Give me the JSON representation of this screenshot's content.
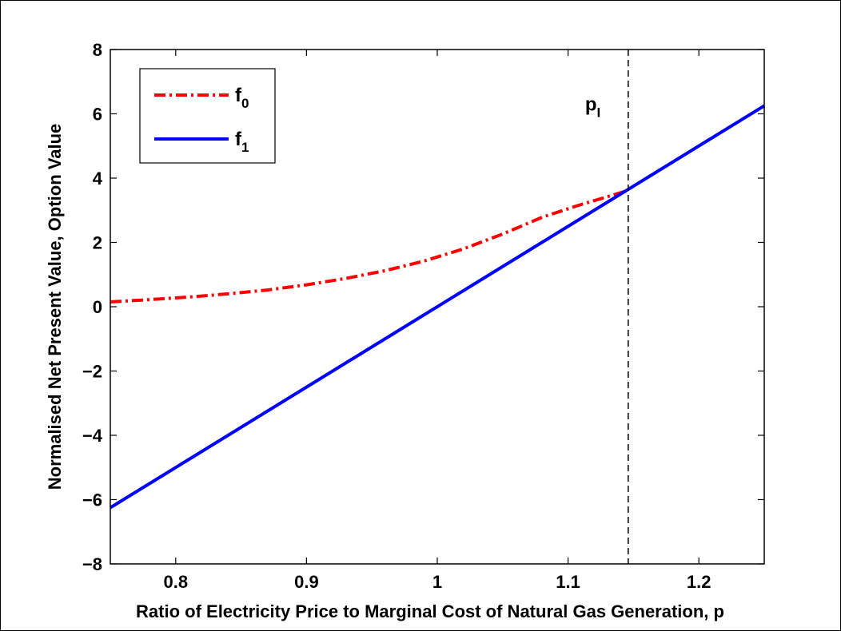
{
  "chart_data": {
    "type": "line",
    "xlabel": "Ratio of Electricity Price to Marginal Cost of Natural Gas Generation, p",
    "ylabel": "Normalised Net Present Value, Option Value",
    "xlim": [
      0.75,
      1.25
    ],
    "ylim": [
      -8,
      8
    ],
    "xticks": [
      0.8,
      0.9,
      1,
      1.1,
      1.2
    ],
    "xtick_labels": [
      "0.8",
      "0.9",
      "1",
      "1.1",
      "1.2"
    ],
    "yticks": [
      -8,
      -6,
      -4,
      -2,
      0,
      2,
      4,
      6,
      8
    ],
    "ytick_labels": [
      "−8",
      "−6",
      "−4",
      "−2",
      "0",
      "2",
      "4",
      "6",
      "8"
    ],
    "grid": false,
    "legend_position": "top-left",
    "series": [
      {
        "name": "f",
        "subscript": "0",
        "color": "#ff0000",
        "style": "dash-dot",
        "x": [
          0.75,
          0.78,
          0.81,
          0.84,
          0.87,
          0.9,
          0.93,
          0.96,
          0.99,
          1.02,
          1.05,
          1.08,
          1.11,
          1.13,
          1.146
        ],
        "y": [
          0.15,
          0.22,
          0.3,
          0.4,
          0.52,
          0.68,
          0.88,
          1.12,
          1.42,
          1.8,
          2.26,
          2.78,
          3.18,
          3.42,
          3.62
        ]
      },
      {
        "name": "f",
        "subscript": "1",
        "color": "#0000ff",
        "style": "solid",
        "x": [
          0.75,
          1.25
        ],
        "y": [
          -6.25,
          6.25
        ]
      }
    ],
    "annotations": [
      {
        "text": "p",
        "subscript": "I",
        "x": 1.113,
        "y": 6.1
      },
      {
        "type": "vline",
        "x": 1.146,
        "style": "dashed",
        "color": "#000000"
      }
    ]
  }
}
